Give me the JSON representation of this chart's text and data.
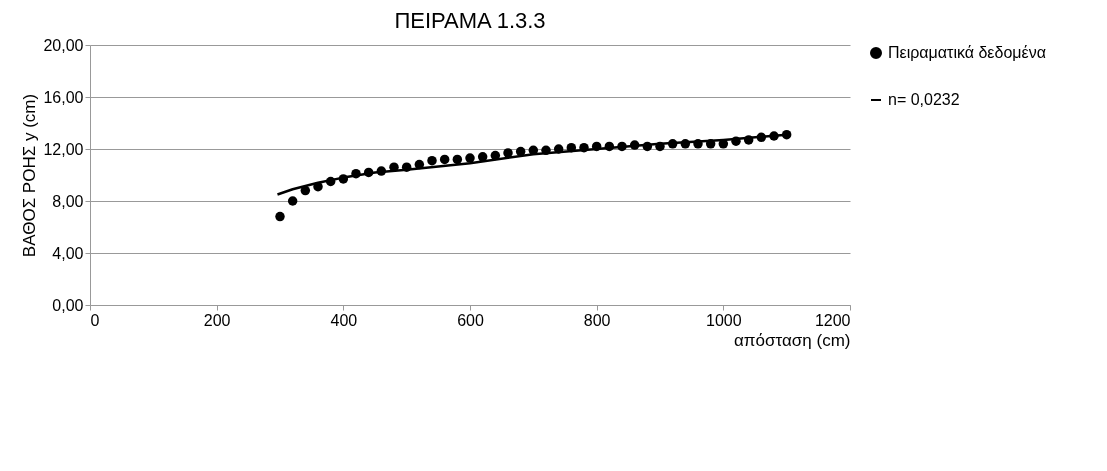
{
  "chart_data": {
    "type": "scatter",
    "title": "ΠΕΙΡΑΜΑ 1.3.3",
    "xlabel": "απόσταση (cm)",
    "ylabel": "ΒΑΘΟΣ  ΡΟΗΣ  y (cm)",
    "xlim": [
      0,
      1200
    ],
    "xticks": [
      0,
      200,
      400,
      600,
      800,
      1000,
      1200
    ],
    "ylim": [
      0,
      20
    ],
    "yticks": [
      {
        "value": 0,
        "label": "0,00"
      },
      {
        "value": 4,
        "label": "4,00"
      },
      {
        "value": 8,
        "label": "8,00"
      },
      {
        "value": 12,
        "label": "12,00"
      },
      {
        "value": 16,
        "label": "16,00"
      },
      {
        "value": 20,
        "label": "20,00"
      }
    ],
    "grid": "y",
    "legend": "right",
    "series": [
      {
        "name": "Πειραματικά δεδομένα",
        "color": "#000000",
        "marker": "circle",
        "x": [
          300,
          320,
          340,
          360,
          380,
          400,
          420,
          440,
          460,
          480,
          500,
          520,
          540,
          560,
          580,
          600,
          620,
          640,
          660,
          680,
          700,
          720,
          740,
          760,
          780,
          800,
          820,
          840,
          860,
          880,
          900,
          920,
          940,
          960,
          980,
          1000,
          1020,
          1040,
          1060,
          1080,
          1100
        ],
        "values": [
          6.8,
          8.0,
          8.8,
          9.1,
          9.5,
          9.7,
          10.1,
          10.2,
          10.3,
          10.6,
          10.6,
          10.8,
          11.1,
          11.2,
          11.2,
          11.3,
          11.4,
          11.5,
          11.7,
          11.8,
          11.9,
          11.9,
          12.0,
          12.1,
          12.1,
          12.2,
          12.2,
          12.2,
          12.3,
          12.2,
          12.2,
          12.4,
          12.4,
          12.4,
          12.4,
          12.4,
          12.6,
          12.7,
          12.9,
          13.0,
          13.1
        ]
      },
      {
        "name": "n= 0,0232",
        "type": "line",
        "color": "#000000",
        "line_style": "solid",
        "x": [
          296,
          320,
          360,
          400,
          450,
          500,
          600,
          700,
          800,
          900,
          1000,
          1100
        ],
        "values": [
          8.5,
          8.9,
          9.4,
          9.8,
          10.2,
          10.4,
          10.9,
          11.6,
          12.0,
          12.4,
          12.7,
          13.1
        ]
      }
    ]
  }
}
